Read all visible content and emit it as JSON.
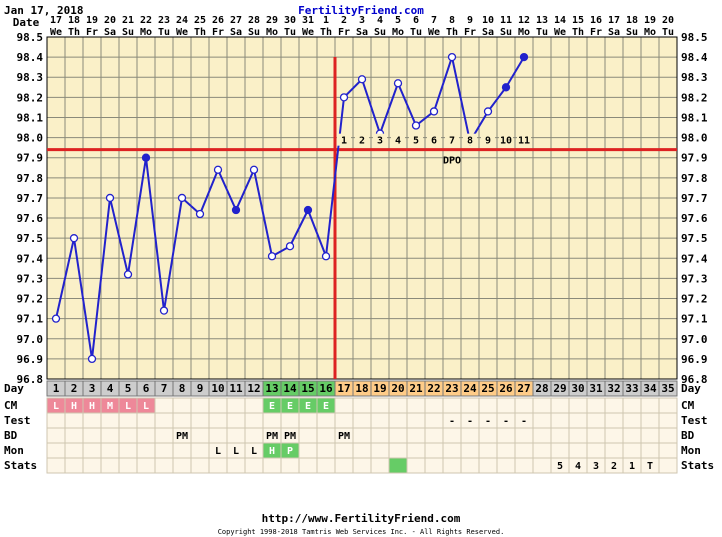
{
  "header": {
    "date": "Jan 17, 2018",
    "site": "FertilityFriend.com"
  },
  "footer": {
    "url": "http://www.FertilityFriend.com",
    "copyright": "Copyright 1998-2018 Tamtris Web Services Inc. - All Rights Reserved."
  },
  "colors": {
    "grid_bg": "#faf0c8",
    "cycle_bg": "#cdcdcd",
    "green": "#66cc66",
    "orange": "#ffcc88",
    "pink": "#ee8899",
    "line": "#2222cc",
    "coverline": "#dd2222"
  },
  "chart_data": {
    "type": "line",
    "title": "",
    "y_label": "",
    "y_range": [
      96.8,
      98.5
    ],
    "y_ticks": [
      "98.5",
      "98.4",
      "98.3",
      "98.2",
      "98.1",
      "98.0",
      "97.9",
      "97.8",
      "97.7",
      "97.6",
      "97.5",
      "97.4",
      "97.3",
      "97.2",
      "97.1",
      "97.0",
      "96.9",
      "96.8"
    ],
    "date_row_label": "Date",
    "dates": [
      "17",
      "18",
      "19",
      "20",
      "21",
      "22",
      "23",
      "24",
      "25",
      "26",
      "27",
      "28",
      "29",
      "30",
      "31",
      "1",
      "2",
      "3",
      "4",
      "5",
      "6",
      "7",
      "8",
      "9",
      "10",
      "11",
      "12",
      "13",
      "14",
      "15",
      "16",
      "17",
      "18",
      "19",
      "20"
    ],
    "weekdays": [
      "We",
      "Th",
      "Fr",
      "Sa",
      "Su",
      "Mo",
      "Tu",
      "We",
      "Th",
      "Fr",
      "Sa",
      "Su",
      "Mo",
      "Tu",
      "We",
      "Th",
      "Fr",
      "Sa",
      "Su",
      "Mo",
      "Tu",
      "We",
      "Th",
      "Fr",
      "Sa",
      "Su",
      "Mo",
      "Tu",
      "We",
      "Th",
      "Fr",
      "Sa",
      "Su",
      "Mo",
      "Tu"
    ],
    "cycle_day_label": "Day",
    "cycle_days": [
      "1",
      "2",
      "3",
      "4",
      "5",
      "6",
      "7",
      "8",
      "9",
      "10",
      "11",
      "12",
      "13",
      "14",
      "15",
      "16",
      "17",
      "18",
      "19",
      "20",
      "21",
      "22",
      "23",
      "24",
      "25",
      "26",
      "27",
      "28",
      "29",
      "30",
      "31",
      "32",
      "33",
      "34",
      "35"
    ],
    "temps": [
      97.1,
      97.5,
      96.9,
      97.7,
      97.32,
      97.9,
      97.14,
      97.7,
      97.62,
      97.84,
      97.64,
      97.84,
      97.41,
      97.46,
      97.64,
      97.41,
      98.2,
      98.29,
      98.02,
      98.27,
      98.06,
      98.13,
      98.4,
      97.98,
      98.13,
      98.25,
      98.4
    ],
    "filled_points": [
      5,
      10,
      14,
      23,
      25,
      26
    ],
    "coverline": 97.94,
    "ovulation_day_index": 15,
    "dpo_label": "DPO",
    "dpo_numbers": [
      "1",
      "2",
      "3",
      "4",
      "5",
      "6",
      "7",
      "8",
      "9",
      "10",
      "11"
    ],
    "rows": [
      {
        "label": "CM",
        "cells": [
          "L",
          "H",
          "H",
          "M",
          "L",
          "L",
          "",
          "",
          "",
          "",
          "",
          "",
          "E",
          "E",
          "E",
          "E",
          "",
          "",
          "",
          "",
          "",
          "",
          "",
          "",
          "",
          "",
          "",
          "",
          "",
          "",
          "",
          "",
          "",
          "",
          ""
        ]
      },
      {
        "label": "Test",
        "cells": [
          "",
          "",
          "",
          "",
          "",
          "",
          "",
          "",
          "",
          "",
          "",
          "",
          "",
          "",
          "",
          "",
          "",
          "",
          "",
          "",
          "",
          "",
          "-",
          "-",
          "-",
          "-",
          "-",
          "",
          "",
          "",
          "",
          "",
          "",
          "",
          ""
        ]
      },
      {
        "label": "BD",
        "cells": [
          "",
          "",
          "",
          "",
          "",
          "",
          "",
          "PM",
          "",
          "",
          "",
          "",
          "PM",
          "PM",
          "",
          "",
          "PM",
          "",
          "",
          "",
          "",
          "",
          "",
          "",
          "",
          "",
          "",
          "",
          "",
          "",
          "",
          "",
          "",
          "",
          ""
        ]
      },
      {
        "label": "Mon",
        "cells": [
          "",
          "",
          "",
          "",
          "",
          "",
          "",
          "",
          "",
          "L",
          "L",
          "L",
          "H",
          "P",
          "",
          "",
          "",
          "",
          "",
          "",
          "",
          "",
          "",
          "",
          "",
          "",
          "",
          "",
          "",
          "",
          "",
          "",
          "",
          "",
          ""
        ]
      },
      {
        "label": "Stats",
        "cells": [
          "",
          "",
          "",
          "",
          "",
          "",
          "",
          "",
          "",
          "",
          "",
          "",
          "",
          "",
          "",
          "",
          "",
          "",
          "",
          "",
          "",
          "",
          "",
          "",
          "",
          "",
          "",
          "",
          "5",
          "4",
          "3",
          "2",
          "1",
          "T",
          ""
        ]
      }
    ]
  }
}
